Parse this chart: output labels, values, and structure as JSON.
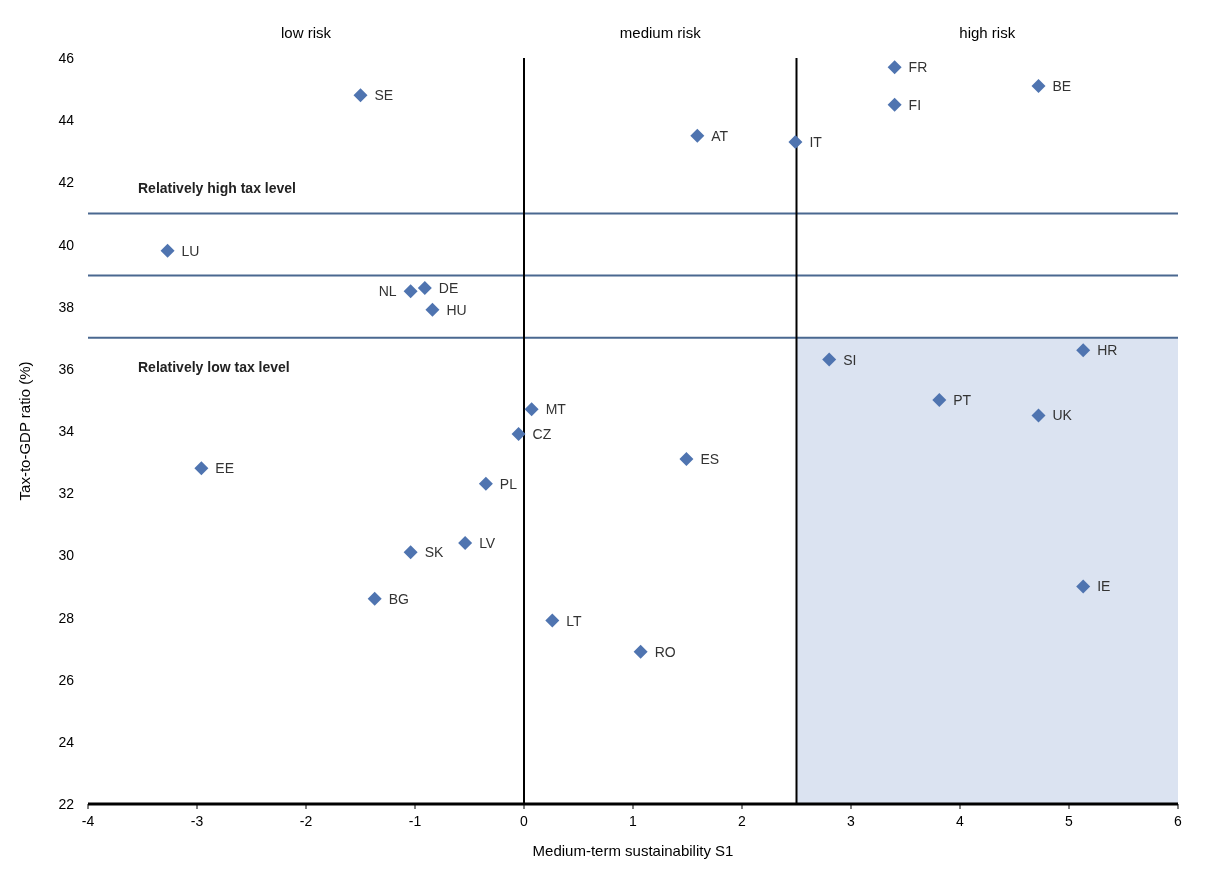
{
  "chart_data": {
    "type": "scatter",
    "xlabel": "Medium-term sustainability S1",
    "ylabel": "Tax-to-GDP ratio (%)",
    "x": [
      -1.5,
      3.4,
      4.72,
      3.4,
      1.59,
      2.49,
      -3.27,
      -0.91,
      -1.04,
      -0.84,
      2.8,
      5.13,
      3.81,
      4.72,
      0.07,
      -0.05,
      -2.96,
      1.49,
      -0.35,
      -0.54,
      -1.04,
      -1.37,
      5.13,
      0.26,
      1.07
    ],
    "values": [
      44.8,
      45.7,
      45.1,
      44.5,
      43.5,
      43.3,
      39.8,
      38.6,
      38.5,
      37.9,
      36.3,
      36.6,
      35.0,
      34.5,
      34.7,
      33.9,
      32.8,
      33.1,
      32.3,
      30.4,
      30.1,
      28.6,
      29.0,
      27.9,
      26.9
    ],
    "value_labels": [
      "SE",
      "FR",
      "BE",
      "FI",
      "AT",
      "IT",
      "LU",
      "DE",
      "NL",
      "HU",
      "SI",
      "HR",
      "PT",
      "UK",
      "MT",
      "CZ",
      "EE",
      "ES",
      "PL",
      "LV",
      "SK",
      "BG",
      "IE",
      "LT",
      "RO"
    ],
    "color": "#4f74b0",
    "marker": "diamond",
    "grid": false,
    "xlim": [
      -4,
      6
    ],
    "xticks": [
      -4,
      -3,
      -2,
      -1,
      0,
      1,
      2,
      3,
      4,
      5,
      6
    ],
    "ylim": [
      22,
      46
    ],
    "yticks": [
      22,
      24,
      26,
      28,
      30,
      32,
      34,
      36,
      38,
      40,
      42,
      44,
      46
    ],
    "ref_lines": [
      {
        "axis": "y",
        "value": 41,
        "label": "Relatively high tax level",
        "color": "#4a6890"
      },
      {
        "axis": "y",
        "value": 39,
        "color": "#4a6890"
      },
      {
        "axis": "y",
        "value": 37,
        "label": "Relatively low tax level",
        "color": "#4a6890"
      },
      {
        "axis": "x",
        "value": 0,
        "color": "#000000"
      },
      {
        "axis": "x",
        "value": 2.5,
        "color": "#000000"
      }
    ],
    "bands": [
      {
        "axis": "x",
        "from": 2.5,
        "to": 6,
        "color": "#dbe3f1"
      }
    ],
    "annotations": [
      "low risk",
      "medium risk",
      "high risk"
    ]
  }
}
